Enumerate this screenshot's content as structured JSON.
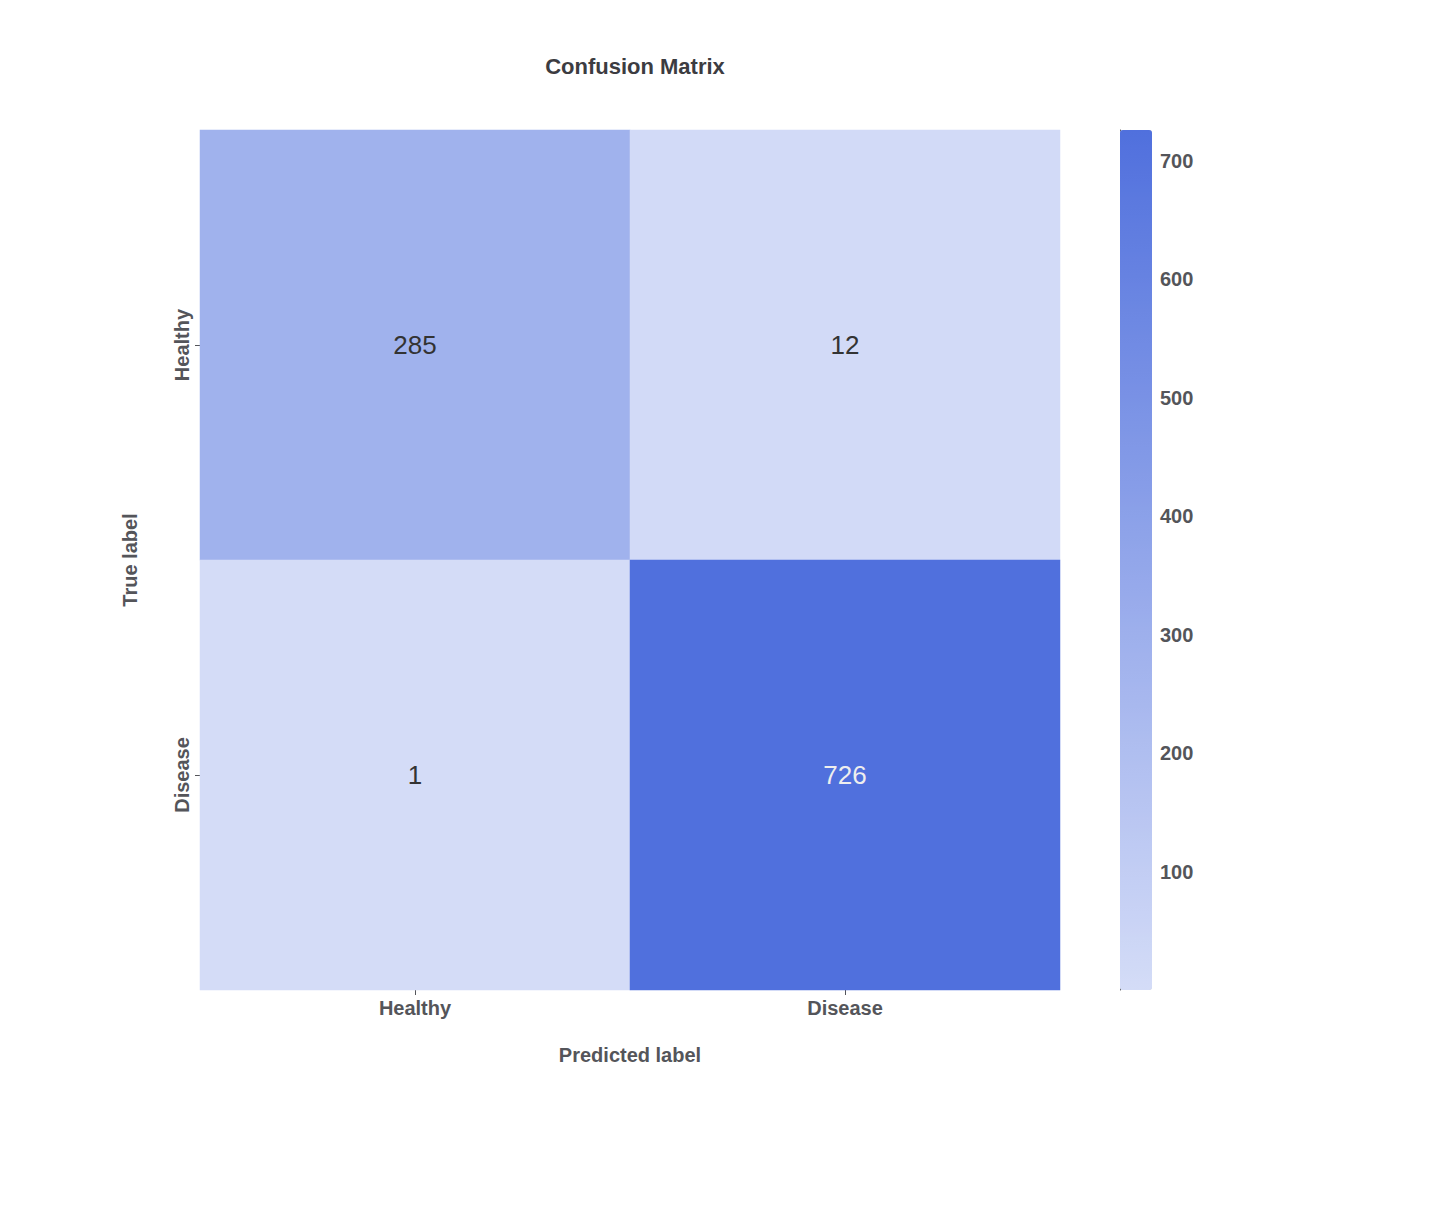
{
  "chart_data": {
    "type": "heatmap",
    "title": "Confusion Matrix",
    "x_categories": [
      "Healthy",
      "Disease"
    ],
    "y_categories": [
      "Healthy",
      "Disease"
    ],
    "xlabel": "Predicted label",
    "ylabel": "True label",
    "values": [
      [
        285,
        12
      ],
      [
        1,
        726
      ]
    ],
    "data_labels": true,
    "grid": false,
    "colorbar_range": [
      0,
      726
    ],
    "colorbar_ticks": [
      100,
      200,
      300,
      400,
      500,
      600,
      700
    ]
  }
}
